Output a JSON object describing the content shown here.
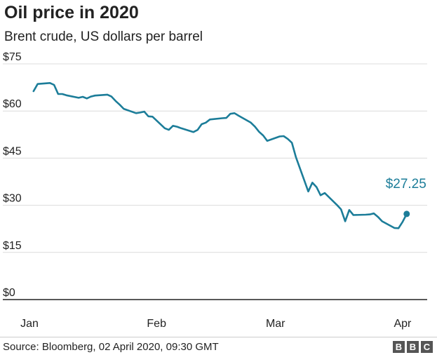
{
  "header": {
    "title": "Oil price in 2020",
    "subtitle": "Brent crude, US dollars per barrel"
  },
  "footer": {
    "source": "Source: Bloomberg, 02 April 2020, 09:30 GMT",
    "logo_letters": [
      "B",
      "B",
      "C"
    ]
  },
  "colors": {
    "series": "#1c7d99",
    "grid": "#dcdcdc",
    "text": "#222222"
  },
  "chart_data": {
    "type": "line",
    "title": "Oil price in 2020",
    "subtitle": "Brent crude, US dollars per barrel",
    "xlabel": "",
    "ylabel": "",
    "ylim": [
      0,
      75
    ],
    "xlim": [
      "2020-01-01",
      "2020-04-07"
    ],
    "y_ticks": [
      0,
      15,
      30,
      45,
      60,
      75
    ],
    "y_tick_labels": [
      "$0",
      "$15",
      "$30",
      "$45",
      "$60",
      "$75"
    ],
    "x_ticks": [
      "2020-01-01",
      "2020-02-01",
      "2020-03-01",
      "2020-04-01"
    ],
    "x_tick_labels": [
      "Jan",
      "Feb",
      "Mar",
      "Apr"
    ],
    "grid": true,
    "legend": "none",
    "end_label": "$27.25",
    "series": [
      {
        "values": [
          [
            "2020-01-02",
            66.3
          ],
          [
            "2020-01-03",
            68.6
          ],
          [
            "2020-01-06",
            68.9
          ],
          [
            "2020-01-07",
            68.3
          ],
          [
            "2020-01-08",
            65.4
          ],
          [
            "2020-01-09",
            65.4
          ],
          [
            "2020-01-10",
            65.0
          ],
          [
            "2020-01-13",
            64.2
          ],
          [
            "2020-01-14",
            64.5
          ],
          [
            "2020-01-15",
            64.0
          ],
          [
            "2020-01-16",
            64.6
          ],
          [
            "2020-01-17",
            64.9
          ],
          [
            "2020-01-20",
            65.2
          ],
          [
            "2020-01-21",
            64.6
          ],
          [
            "2020-01-22",
            63.2
          ],
          [
            "2020-01-23",
            62.0
          ],
          [
            "2020-01-24",
            60.7
          ],
          [
            "2020-01-27",
            59.3
          ],
          [
            "2020-01-28",
            59.5
          ],
          [
            "2020-01-29",
            59.8
          ],
          [
            "2020-01-30",
            58.3
          ],
          [
            "2020-01-31",
            58.2
          ],
          [
            "2020-02-03",
            54.5
          ],
          [
            "2020-02-04",
            54.0
          ],
          [
            "2020-02-05",
            55.3
          ],
          [
            "2020-02-06",
            55.0
          ],
          [
            "2020-02-07",
            54.5
          ],
          [
            "2020-02-10",
            53.3
          ],
          [
            "2020-02-11",
            54.0
          ],
          [
            "2020-02-12",
            55.8
          ],
          [
            "2020-02-13",
            56.3
          ],
          [
            "2020-02-14",
            57.3
          ],
          [
            "2020-02-17",
            57.7
          ],
          [
            "2020-02-18",
            57.8
          ],
          [
            "2020-02-19",
            59.1
          ],
          [
            "2020-02-20",
            59.3
          ],
          [
            "2020-02-21",
            58.5
          ],
          [
            "2020-02-24",
            56.3
          ],
          [
            "2020-02-25",
            55.0
          ],
          [
            "2020-02-26",
            53.4
          ],
          [
            "2020-02-27",
            52.2
          ],
          [
            "2020-02-28",
            50.5
          ],
          [
            "2020-03-02",
            51.9
          ],
          [
            "2020-03-03",
            52.0
          ],
          [
            "2020-03-04",
            51.1
          ],
          [
            "2020-03-05",
            49.9
          ],
          [
            "2020-03-06",
            45.3
          ],
          [
            "2020-03-09",
            34.4
          ],
          [
            "2020-03-10",
            37.2
          ],
          [
            "2020-03-11",
            35.8
          ],
          [
            "2020-03-12",
            33.2
          ],
          [
            "2020-03-13",
            33.9
          ],
          [
            "2020-03-16",
            30.1
          ],
          [
            "2020-03-17",
            28.7
          ],
          [
            "2020-03-18",
            24.9
          ],
          [
            "2020-03-19",
            28.5
          ],
          [
            "2020-03-20",
            26.9
          ],
          [
            "2020-03-23",
            27.0
          ],
          [
            "2020-03-24",
            27.1
          ],
          [
            "2020-03-25",
            27.4
          ],
          [
            "2020-03-26",
            26.3
          ],
          [
            "2020-03-27",
            24.9
          ],
          [
            "2020-03-30",
            22.8
          ],
          [
            "2020-03-31",
            22.7
          ],
          [
            "2020-04-01",
            24.7
          ],
          [
            "2020-04-02",
            27.25
          ]
        ]
      }
    ]
  }
}
